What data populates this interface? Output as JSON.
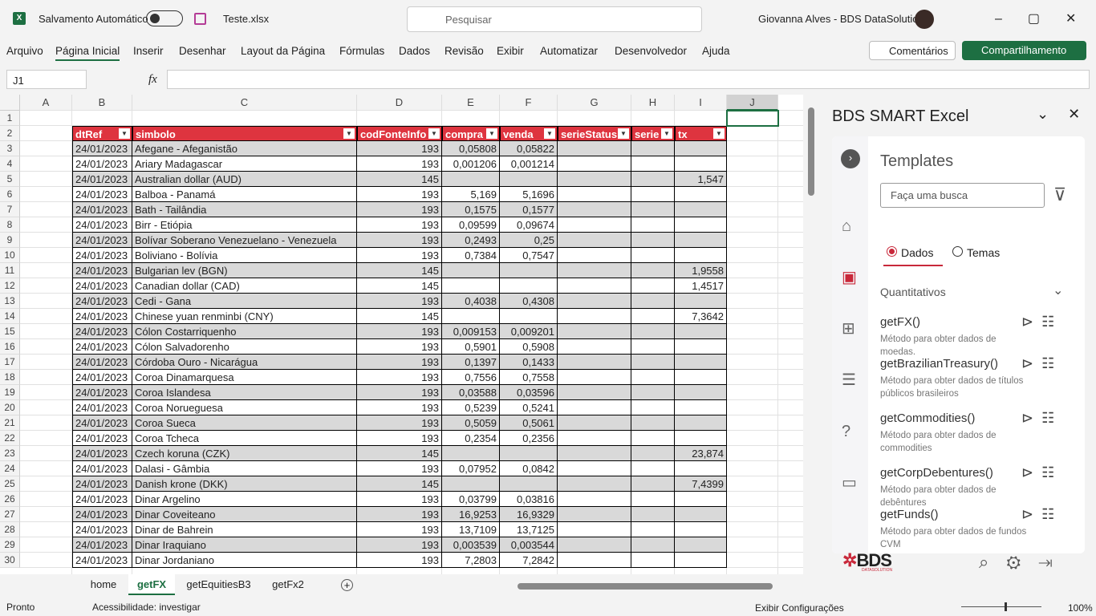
{
  "titlebar": {
    "autosave": "Salvamento Automático",
    "filename": "Teste.xlsx",
    "search": "Pesquisar",
    "user": "Giovanna Alves - BDS DataSolution"
  },
  "menu": {
    "items": [
      "Arquivo",
      "Página Inicial",
      "Inserir",
      "Desenhar",
      "Layout da Página",
      "Fórmulas",
      "Dados",
      "Revisão",
      "Exibir",
      "Automatizar",
      "Desenvolvedor",
      "Ajuda"
    ],
    "comments": "Comentários",
    "share": "Compartilhamento"
  },
  "formula_bar": {
    "cell": "J1",
    "fx": "fx"
  },
  "grid": {
    "columns": [
      "A",
      "B",
      "C",
      "D",
      "E",
      "F",
      "G",
      "H",
      "I",
      "J"
    ],
    "row_headers": [
      "1",
      "2",
      "3",
      "4",
      "5",
      "6",
      "7",
      "8",
      "9",
      "10",
      "11",
      "12",
      "13",
      "14",
      "15",
      "16",
      "17",
      "18",
      "19",
      "20",
      "21",
      "22",
      "23",
      "24",
      "25",
      "26",
      "27",
      "28",
      "29",
      "30"
    ],
    "header": [
      "dtRef",
      "simbolo",
      "codFonteInfo",
      "compra",
      "venda",
      "serieStatus",
      "serie",
      "tx"
    ],
    "rows": [
      [
        "24/01/2023",
        "Afegane - Afeganistão",
        "193",
        "0,05808",
        "0,05822",
        null,
        null,
        null
      ],
      [
        "24/01/2023",
        "Ariary Madagascar",
        "193",
        "0,001206",
        "0,001214",
        null,
        null,
        null
      ],
      [
        "24/01/2023",
        "Australian dollar (AUD)",
        "145",
        null,
        null,
        null,
        null,
        "1,547"
      ],
      [
        "24/01/2023",
        "Balboa - Panamá",
        "193",
        "5,169",
        "5,1696",
        null,
        null,
        null
      ],
      [
        "24/01/2023",
        "Bath - Tailândia",
        "193",
        "0,1575",
        "0,1577",
        null,
        null,
        null
      ],
      [
        "24/01/2023",
        "Birr - Etiópia",
        "193",
        "0,09599",
        "0,09674",
        null,
        null,
        null
      ],
      [
        "24/01/2023",
        "Bolívar Soberano Venezuelano - Venezuela",
        "193",
        "0,2493",
        "0,25",
        null,
        null,
        null
      ],
      [
        "24/01/2023",
        "Boliviano - Bolívia",
        "193",
        "0,7384",
        "0,7547",
        null,
        null,
        null
      ],
      [
        "24/01/2023",
        "Bulgarian lev (BGN)",
        "145",
        null,
        null,
        null,
        null,
        "1,9558"
      ],
      [
        "24/01/2023",
        "Canadian dollar (CAD)",
        "145",
        null,
        null,
        null,
        null,
        "1,4517"
      ],
      [
        "24/01/2023",
        "Cedi - Gana",
        "193",
        "0,4038",
        "0,4308",
        null,
        null,
        null
      ],
      [
        "24/01/2023",
        "Chinese yuan renminbi (CNY)",
        "145",
        null,
        null,
        null,
        null,
        "7,3642"
      ],
      [
        "24/01/2023",
        "Cólon Costarriquenho",
        "193",
        "0,009153",
        "0,009201",
        null,
        null,
        null
      ],
      [
        "24/01/2023",
        "Cólon Salvadorenho",
        "193",
        "0,5901",
        "0,5908",
        null,
        null,
        null
      ],
      [
        "24/01/2023",
        "Córdoba Ouro - Nicarágua",
        "193",
        "0,1397",
        "0,1433",
        null,
        null,
        null
      ],
      [
        "24/01/2023",
        "Coroa Dinamarquesa",
        "193",
        "0,7556",
        "0,7558",
        null,
        null,
        null
      ],
      [
        "24/01/2023",
        "Coroa Islandesa",
        "193",
        "0,03588",
        "0,03596",
        null,
        null,
        null
      ],
      [
        "24/01/2023",
        "Coroa Norueguesa",
        "193",
        "0,5239",
        "0,5241",
        null,
        null,
        null
      ],
      [
        "24/01/2023",
        "Coroa Sueca",
        "193",
        "0,5059",
        "0,5061",
        null,
        null,
        null
      ],
      [
        "24/01/2023",
        "Coroa Tcheca",
        "193",
        "0,2354",
        "0,2356",
        null,
        null,
        null
      ],
      [
        "24/01/2023",
        "Czech koruna (CZK)",
        "145",
        null,
        null,
        null,
        null,
        "23,874"
      ],
      [
        "24/01/2023",
        "Dalasi - Gâmbia",
        "193",
        "0,07952",
        "0,0842",
        null,
        null,
        null
      ],
      [
        "24/01/2023",
        "Danish krone (DKK)",
        "145",
        null,
        null,
        null,
        null,
        "7,4399"
      ],
      [
        "24/01/2023",
        "Dinar Argelino",
        "193",
        "0,03799",
        "0,03816",
        null,
        null,
        null
      ],
      [
        "24/01/2023",
        "Dinar Coveiteano",
        "193",
        "16,9253",
        "16,9329",
        null,
        null,
        null
      ],
      [
        "24/01/2023",
        "Dinar de Bahrein",
        "193",
        "13,7109",
        "13,7125",
        null,
        null,
        null
      ],
      [
        "24/01/2023",
        "Dinar Iraquiano",
        "193",
        "0,003539",
        "0,003544",
        null,
        null,
        null
      ],
      [
        "24/01/2023",
        "Dinar Jordaniano",
        "193",
        "7,2803",
        "7,2842",
        null,
        null,
        null
      ]
    ]
  },
  "sheets": {
    "tabs": [
      "home",
      "getFX",
      "getEquitiesB3",
      "getFx2"
    ],
    "active": 1
  },
  "status": {
    "ready": "Pronto",
    "accessibility": "Acessibilidade: investigar",
    "display": "Exibir Configurações",
    "zoom": "100%"
  },
  "panel": {
    "title": "BDS SMART Excel",
    "heading": "Templates",
    "search": "Faça uma busca",
    "radios": [
      "Dados",
      "Temas"
    ],
    "section": "Quantitativos",
    "methods": [
      {
        "name": "getFX()",
        "desc": "Método para obter dados de moedas."
      },
      {
        "name": "getBrazilianTreasury()",
        "desc": "Método para obter dados de títulos públicos brasileiros"
      },
      {
        "name": "getCommodities()",
        "desc": "Método para obter dados de commodities"
      },
      {
        "name": "getCorpDebentures()",
        "desc": "Método para obter dados de debêntures"
      },
      {
        "name": "getFunds()",
        "desc": "Método para obter dados de fundos CVM"
      }
    ],
    "logo": "BDS",
    "logo_sub": "DATASOLUTION"
  }
}
